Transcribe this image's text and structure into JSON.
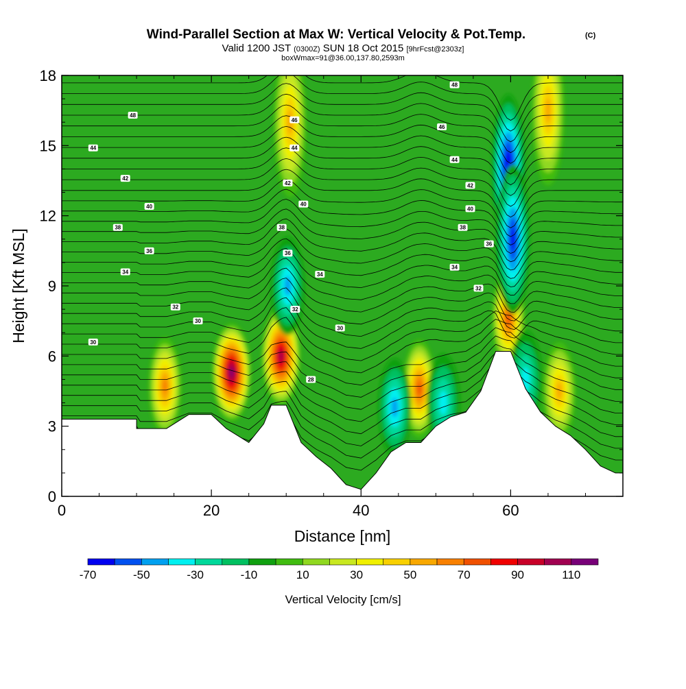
{
  "chart_data": {
    "type": "heatmap",
    "title": {
      "main": "Wind-Parallel Section at Max W: Vertical Velocity & Pot.Temp.",
      "main_mark": "(C)",
      "valid": "Valid 1200 JST",
      "valid_utc": "(0300Z)",
      "valid_date": "SUN 18 Oct 2015",
      "forecast": "[9hrFcst@2303z]",
      "box": "boxWmax=91@36.00,137.80,2593m"
    },
    "xlabel": "Distance [nm]",
    "ylabel": "Height [Kft MSL]",
    "xlim": [
      0,
      75
    ],
    "ylim": [
      0,
      18
    ],
    "x_ticks": [
      0,
      20,
      40,
      60
    ],
    "y_ticks": [
      0,
      3,
      6,
      9,
      12,
      15,
      18
    ],
    "colorbar": {
      "label": "Vertical Velocity [cm/s]",
      "bounds": [
        -70,
        -60,
        -50,
        -40,
        -30,
        -20,
        -10,
        0,
        10,
        20,
        30,
        40,
        50,
        60,
        70,
        80,
        90,
        100,
        110,
        120
      ],
      "colors": [
        "#0000f0",
        "#0050f0",
        "#00a0f0",
        "#00f0f0",
        "#00d89a",
        "#00c060",
        "#10a010",
        "#40bc10",
        "#90d820",
        "#c8e820",
        "#f0f000",
        "#f8d000",
        "#f8a800",
        "#f88000",
        "#f05000",
        "#f00000",
        "#c80028",
        "#a00050",
        "#780078"
      ],
      "tick_labels": [
        "-70",
        "-50",
        "-30",
        "-10",
        "10",
        "30",
        "50",
        "70",
        "90",
        "110"
      ]
    },
    "terrain": [
      [
        0,
        3.3
      ],
      [
        10,
        3.3
      ],
      [
        10,
        2.9
      ],
      [
        14,
        2.9
      ],
      [
        17,
        3.5
      ],
      [
        20,
        3.5
      ],
      [
        22,
        2.9
      ],
      [
        25,
        2.3
      ],
      [
        27,
        3.1
      ],
      [
        28,
        3.9
      ],
      [
        30,
        3.9
      ],
      [
        32,
        2.3
      ],
      [
        34,
        1.7
      ],
      [
        36,
        1.2
      ],
      [
        38,
        0.5
      ],
      [
        40,
        0.3
      ],
      [
        42,
        1.0
      ],
      [
        44,
        1.9
      ],
      [
        46,
        2.3
      ],
      [
        48,
        2.3
      ],
      [
        50,
        3.0
      ],
      [
        52,
        3.4
      ],
      [
        54,
        3.6
      ],
      [
        56,
        4.5
      ],
      [
        58,
        6.2
      ],
      [
        60,
        6.2
      ],
      [
        62,
        4.6
      ],
      [
        64,
        3.6
      ],
      [
        66,
        3.0
      ],
      [
        68,
        2.6
      ],
      [
        70,
        2.0
      ],
      [
        72,
        1.3
      ],
      [
        74,
        1.0
      ],
      [
        75,
        1.0
      ]
    ],
    "vertical_velocity_cells": [
      {
        "x": 13.8,
        "z": 4.7,
        "peak": 60
      },
      {
        "x": 22.7,
        "z": 5.3,
        "peak": 110
      },
      {
        "x": 29.3,
        "z": 6.0,
        "peak": 100
      },
      {
        "x": 47.8,
        "z": 4.6,
        "peak": 70
      },
      {
        "x": 59.7,
        "z": 7.6,
        "peak": 70
      },
      {
        "x": 66.5,
        "z": 4.5,
        "peak": 50
      },
      {
        "x": 30.5,
        "z": 16.0,
        "peak": 50
      },
      {
        "x": 65.0,
        "z": 16.5,
        "peak": 50
      },
      {
        "x": 59.7,
        "z": 14.0,
        "peak": -70
      },
      {
        "x": 60.3,
        "z": 11.0,
        "peak": -60
      },
      {
        "x": 30.2,
        "z": 9.0,
        "peak": -40
      },
      {
        "x": 44.5,
        "z": 3.8,
        "peak": -40
      },
      {
        "x": 51.0,
        "z": 4.0,
        "peak": -30
      },
      {
        "x": 62.0,
        "z": 5.0,
        "peak": -30
      }
    ],
    "isentrope_labels": [
      {
        "x": 9.5,
        "z": 16.3,
        "text": "48"
      },
      {
        "x": 4.2,
        "z": 14.9,
        "text": "44"
      },
      {
        "x": 8.5,
        "z": 13.6,
        "text": "42"
      },
      {
        "x": 11.7,
        "z": 12.4,
        "text": "40"
      },
      {
        "x": 7.5,
        "z": 11.5,
        "text": "38"
      },
      {
        "x": 11.7,
        "z": 10.5,
        "text": "36"
      },
      {
        "x": 8.5,
        "z": 9.6,
        "text": "34"
      },
      {
        "x": 15.2,
        "z": 8.1,
        "text": "32"
      },
      {
        "x": 18.2,
        "z": 7.5,
        "text": "30"
      },
      {
        "x": 4.2,
        "z": 6.6,
        "text": "30"
      },
      {
        "x": 31.1,
        "z": 16.1,
        "text": "46"
      },
      {
        "x": 31.1,
        "z": 14.9,
        "text": "44"
      },
      {
        "x": 30.2,
        "z": 13.4,
        "text": "42"
      },
      {
        "x": 32.3,
        "z": 12.5,
        "text": "40"
      },
      {
        "x": 29.4,
        "z": 11.5,
        "text": "38"
      },
      {
        "x": 30.2,
        "z": 10.4,
        "text": "36"
      },
      {
        "x": 34.5,
        "z": 9.5,
        "text": "34"
      },
      {
        "x": 31.2,
        "z": 8.0,
        "text": "32"
      },
      {
        "x": 37.2,
        "z": 7.2,
        "text": "30"
      },
      {
        "x": 33.3,
        "z": 5.0,
        "text": "28"
      },
      {
        "x": 52.5,
        "z": 17.6,
        "text": "48"
      },
      {
        "x": 50.8,
        "z": 15.8,
        "text": "46"
      },
      {
        "x": 52.5,
        "z": 14.4,
        "text": "44"
      },
      {
        "x": 54.6,
        "z": 13.3,
        "text": "42"
      },
      {
        "x": 54.6,
        "z": 12.3,
        "text": "40"
      },
      {
        "x": 53.6,
        "z": 11.5,
        "text": "38"
      },
      {
        "x": 57.1,
        "z": 10.8,
        "text": "36"
      },
      {
        "x": 52.5,
        "z": 9.8,
        "text": "34"
      },
      {
        "x": 55.7,
        "z": 8.9,
        "text": "32"
      }
    ]
  }
}
